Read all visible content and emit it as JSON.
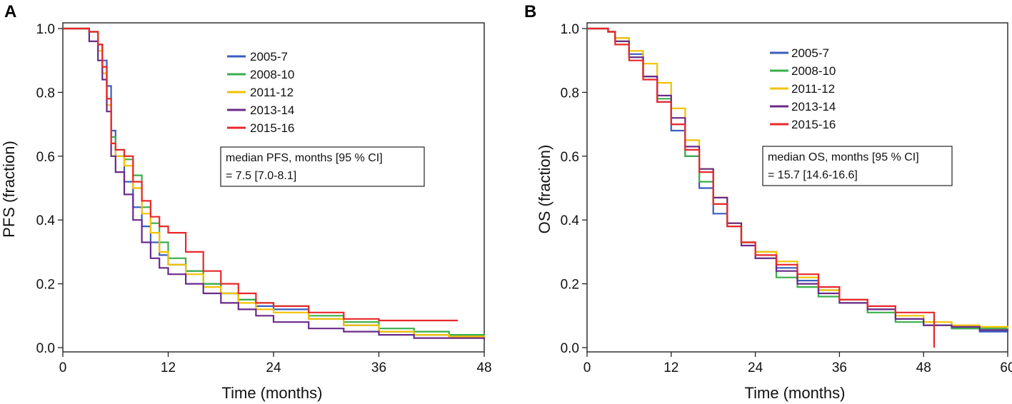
{
  "chart_data": [
    {
      "panel": "A",
      "type": "line",
      "xlabel": "Time (months)",
      "ylabel": "PFS (fraction)",
      "xlim": [
        0,
        48
      ],
      "ylim": [
        0,
        1
      ],
      "xticks": [
        "0",
        "12",
        "24",
        "36",
        "48"
      ],
      "yticks": [
        "0.0",
        "0.2",
        "0.4",
        "0.6",
        "0.8",
        "1.0"
      ],
      "legend": [
        "2005-7",
        "2008-10",
        "2011-12",
        "2013-14",
        "2015-16"
      ],
      "annotation": [
        "median PFS, months [95 % CI]",
        "= 7.5 [7.0-8.1]"
      ],
      "series": [
        {
          "name": "2005-7",
          "color": "#3a5dbf",
          "x": [
            0,
            3,
            4,
            4.5,
            5,
            5.5,
            6,
            7,
            8,
            9,
            10,
            11,
            12,
            14,
            16,
            18,
            20,
            22,
            24,
            28,
            32,
            36,
            40,
            44,
            48
          ],
          "y": [
            1.0,
            0.99,
            0.95,
            0.9,
            0.82,
            0.68,
            0.6,
            0.52,
            0.44,
            0.38,
            0.33,
            0.29,
            0.26,
            0.24,
            0.2,
            0.17,
            0.15,
            0.13,
            0.12,
            0.09,
            0.07,
            0.05,
            0.04,
            0.035,
            0.03
          ]
        },
        {
          "name": "2008-10",
          "color": "#3aae4a",
          "x": [
            0,
            3,
            4,
            4.5,
            5,
            5.5,
            6,
            7,
            8,
            9,
            10,
            11,
            12,
            14,
            16,
            18,
            20,
            22,
            24,
            28,
            32,
            36,
            40,
            44,
            48
          ],
          "y": [
            1.0,
            0.99,
            0.95,
            0.88,
            0.78,
            0.66,
            0.62,
            0.59,
            0.54,
            0.44,
            0.39,
            0.33,
            0.28,
            0.24,
            0.2,
            0.17,
            0.15,
            0.14,
            0.13,
            0.1,
            0.08,
            0.06,
            0.05,
            0.04,
            0.035
          ]
        },
        {
          "name": "2011-12",
          "color": "#f2c200",
          "x": [
            0,
            3,
            4,
            4.5,
            5,
            5.5,
            6,
            7,
            8,
            9,
            10,
            11,
            12,
            14,
            16,
            18,
            20,
            22,
            24,
            28,
            32,
            36,
            40,
            44,
            48
          ],
          "y": [
            1.0,
            0.99,
            0.93,
            0.86,
            0.76,
            0.64,
            0.6,
            0.57,
            0.5,
            0.42,
            0.36,
            0.3,
            0.26,
            0.23,
            0.19,
            0.17,
            0.14,
            0.12,
            0.11,
            0.09,
            0.07,
            0.05,
            0.04,
            0.035,
            0.03
          ]
        },
        {
          "name": "2013-14",
          "color": "#6a2a8a",
          "x": [
            0,
            3,
            4,
            4.5,
            5,
            5.5,
            6,
            7,
            8,
            9,
            10,
            11,
            12,
            14,
            16,
            18,
            20,
            22,
            24,
            28,
            32,
            36,
            40,
            44,
            48
          ],
          "y": [
            1.0,
            0.96,
            0.9,
            0.84,
            0.74,
            0.6,
            0.55,
            0.48,
            0.4,
            0.33,
            0.28,
            0.25,
            0.23,
            0.2,
            0.17,
            0.14,
            0.12,
            0.1,
            0.08,
            0.06,
            0.05,
            0.04,
            0.03,
            0.03,
            0.025
          ]
        },
        {
          "name": "2015-16",
          "color": "#e8282b",
          "x": [
            0,
            3,
            4,
            4.5,
            5,
            5.5,
            6,
            7,
            8,
            9,
            10,
            11,
            12,
            14,
            16,
            18,
            20,
            22,
            24,
            28,
            32,
            36,
            40,
            45
          ],
          "y": [
            1.0,
            0.99,
            0.95,
            0.88,
            0.78,
            0.64,
            0.62,
            0.6,
            0.52,
            0.46,
            0.41,
            0.38,
            0.36,
            0.3,
            0.24,
            0.2,
            0.17,
            0.14,
            0.13,
            0.11,
            0.09,
            0.085,
            0.085,
            0.085
          ]
        }
      ]
    },
    {
      "panel": "B",
      "type": "line",
      "xlabel": "Time (months)",
      "ylabel": "OS (fraction)",
      "xlim": [
        0,
        60
      ],
      "ylim": [
        0,
        1
      ],
      "xticks": [
        "0",
        "12",
        "24",
        "36",
        "48",
        "60"
      ],
      "yticks": [
        "0.0",
        "0.2",
        "0.4",
        "0.6",
        "0.8",
        "1.0"
      ],
      "legend": [
        "2005-7",
        "2008-10",
        "2011-12",
        "2013-14",
        "2015-16"
      ],
      "annotation": [
        "median OS, months [95 % CI]",
        "= 15.7 [14.6-16.6]"
      ],
      "series": [
        {
          "name": "2005-7",
          "color": "#3a5dbf",
          "x": [
            0,
            3,
            4,
            6,
            8,
            10,
            12,
            14,
            16,
            18,
            20,
            22,
            24,
            27,
            30,
            33,
            36,
            40,
            44,
            48,
            52,
            56,
            60
          ],
          "y": [
            1.0,
            0.99,
            0.97,
            0.92,
            0.85,
            0.77,
            0.68,
            0.6,
            0.5,
            0.42,
            0.38,
            0.33,
            0.3,
            0.25,
            0.21,
            0.18,
            0.15,
            0.12,
            0.09,
            0.07,
            0.06,
            0.05,
            0.05
          ]
        },
        {
          "name": "2008-10",
          "color": "#3aae4a",
          "x": [
            0,
            3,
            4,
            6,
            8,
            10,
            12,
            14,
            16,
            18,
            20,
            22,
            24,
            27,
            30,
            33,
            36,
            40,
            44,
            48,
            52,
            56,
            60
          ],
          "y": [
            1.0,
            0.99,
            0.96,
            0.91,
            0.85,
            0.78,
            0.7,
            0.6,
            0.52,
            0.45,
            0.39,
            0.33,
            0.28,
            0.22,
            0.19,
            0.16,
            0.14,
            0.11,
            0.08,
            0.07,
            0.06,
            0.06,
            0.055
          ]
        },
        {
          "name": "2011-12",
          "color": "#f2c200",
          "x": [
            0,
            3,
            4,
            6,
            8,
            10,
            12,
            14,
            16,
            18,
            20,
            22,
            24,
            27,
            30,
            33,
            36,
            40,
            44,
            48,
            52,
            56,
            60
          ],
          "y": [
            1.0,
            0.99,
            0.97,
            0.93,
            0.89,
            0.83,
            0.75,
            0.65,
            0.56,
            0.47,
            0.39,
            0.33,
            0.3,
            0.27,
            0.22,
            0.18,
            0.15,
            0.12,
            0.1,
            0.08,
            0.07,
            0.065,
            0.06
          ]
        },
        {
          "name": "2013-14",
          "color": "#6a2a8a",
          "x": [
            0,
            3,
            4,
            6,
            8,
            10,
            12,
            14,
            16,
            18,
            20,
            22,
            24,
            27,
            30,
            33,
            36,
            40,
            44,
            48,
            52,
            56,
            60
          ],
          "y": [
            1.0,
            0.99,
            0.96,
            0.91,
            0.85,
            0.79,
            0.72,
            0.63,
            0.56,
            0.47,
            0.39,
            0.32,
            0.28,
            0.24,
            0.2,
            0.17,
            0.14,
            0.12,
            0.09,
            0.07,
            0.065,
            0.055,
            0.05
          ]
        },
        {
          "name": "2015-16",
          "color": "#e8282b",
          "x": [
            0,
            3,
            4,
            6,
            8,
            10,
            12,
            14,
            16,
            18,
            20,
            22,
            24,
            27,
            30,
            33,
            36,
            40,
            44,
            48,
            49.5,
            49.5
          ],
          "y": [
            1.0,
            0.99,
            0.95,
            0.9,
            0.84,
            0.77,
            0.7,
            0.62,
            0.55,
            0.45,
            0.38,
            0.33,
            0.29,
            0.26,
            0.23,
            0.19,
            0.15,
            0.13,
            0.11,
            0.11,
            0.11,
            0.0
          ]
        }
      ]
    }
  ]
}
